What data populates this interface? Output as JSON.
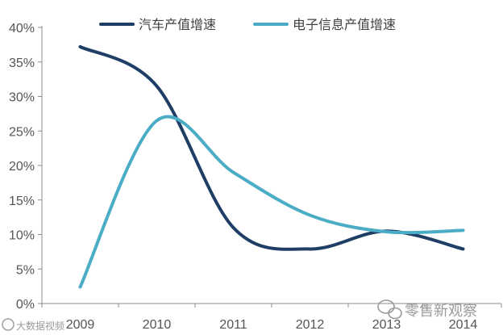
{
  "chart_data": {
    "type": "line",
    "x": [
      "2009",
      "2010",
      "2011",
      "2012",
      "2013",
      "2014"
    ],
    "series": [
      {
        "name": "汽车产值增速",
        "color": "#1f3e66",
        "values": [
          37.2,
          31.5,
          11.0,
          7.9,
          10.5,
          7.9
        ]
      },
      {
        "name": "电子信息产值增速",
        "color": "#4bacc6",
        "values": [
          2.4,
          26.5,
          19.0,
          12.8,
          10.4,
          10.6
        ]
      }
    ],
    "ylim": [
      0,
      40
    ],
    "yticks": [
      "0%",
      "5%",
      "10%",
      "15%",
      "20%",
      "25%",
      "30%",
      "35%",
      "40%"
    ],
    "grid": false,
    "legend_position": "top"
  },
  "watermark": {
    "bottom_left": "大数据视频",
    "bottom_right": "零售新观察"
  }
}
